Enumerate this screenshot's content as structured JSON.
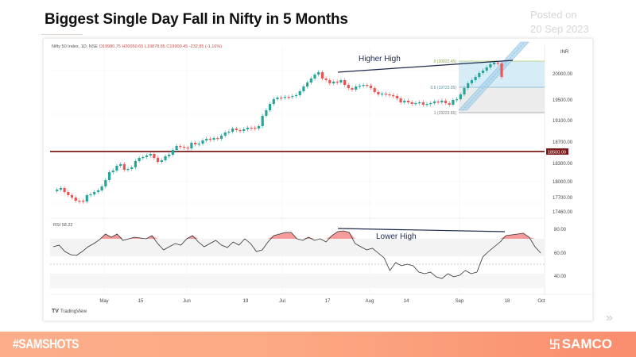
{
  "header": {
    "title": "Biggest Single Day Fall in Nifty in 5 Months",
    "posted_label": "Posted on",
    "posted_date": "20 Sep 2023"
  },
  "chart_header": {
    "symbol": "Nifty 50 Index, 1D, NSE",
    "open": "O19980.75",
    "high": "H20050.65",
    "low": "L19878.85",
    "close": "C19900.45",
    "change": "-232.85 (-1.16%)"
  },
  "annotations": {
    "higher_high": "Higher High",
    "lower_high": "Lower High",
    "fib_0": "0 (20022.45)",
    "fib_05": "0.5 (19723.05)",
    "fib_1": "1 (19223.65)",
    "support_label": "18500.00",
    "rsi_label": "RSI 58.22"
  },
  "price_axis": {
    "currency": "INR",
    "ticks": [
      "20000.00",
      "19500.00",
      "19100.00",
      "18700.00",
      "18500.00",
      "18300.00",
      "18000.00",
      "17700.00",
      "17460.00"
    ]
  },
  "rsi_axis": {
    "ticks": [
      "80.00",
      "60.00",
      "40.00"
    ]
  },
  "time_axis": {
    "ticks": [
      "May",
      "15",
      "Jun",
      "19",
      "Jul",
      "17",
      "Aug",
      "14",
      "Sep",
      "18",
      "Oct"
    ]
  },
  "branding": {
    "tradingview": "TradingView",
    "hashtag": "#SAMSHOTS",
    "brand": "SAMCO",
    "brand_symbol": "卐",
    "next_icon": "»"
  },
  "colors": {
    "up": "#26a69a",
    "down": "#ef5350",
    "support_line": "#7b1a1a",
    "trendline": "#1c2a4a",
    "fib_zone": "#bfe0f0",
    "channel": "#a8d4ee",
    "rsi_fill": "#f48a8a",
    "footer_start": "#fcae8a",
    "footer_end": "#f98d6e"
  },
  "chart_data": {
    "type": "candlestick",
    "title": "Nifty 50 Index, 1D, NSE",
    "x_range": [
      "Apr 2023",
      "Oct 2023"
    ],
    "y_range": [
      17460,
      20200
    ],
    "last_candle": {
      "open": 19980.75,
      "high": 20050.65,
      "low": 19878.85,
      "close": 19900.45,
      "change": -232.85,
      "change_pct": -1.16
    },
    "horizontal_support": 18500,
    "fibonacci": [
      {
        "level": 0,
        "price": 20022.45
      },
      {
        "level": 0.5,
        "price": 19723.05
      },
      {
        "level": 1,
        "price": 19223.65
      }
    ],
    "approx_closes": [
      {
        "date": "Apr end",
        "close": 17750
      },
      {
        "date": "May 1",
        "close": 18050
      },
      {
        "date": "May 15",
        "close": 18400
      },
      {
        "date": "Jun 1",
        "close": 18500
      },
      {
        "date": "Jun 19",
        "close": 18750
      },
      {
        "date": "Jul 3",
        "close": 19350
      },
      {
        "date": "Jul 20",
        "close": 19990
      },
      {
        "date": "Aug 1",
        "close": 19700
      },
      {
        "date": "Aug 14",
        "close": 19450
      },
      {
        "date": "Sep 1",
        "close": 19430
      },
      {
        "date": "Sep 15",
        "close": 20130
      },
      {
        "date": "Sep 20",
        "close": 19900
      }
    ],
    "rsi": {
      "current": 58.22,
      "levels": [
        30,
        50,
        70
      ],
      "approx_values": [
        65,
        58,
        56,
        72,
        70,
        68,
        58,
        70,
        60,
        66,
        55,
        76,
        68,
        80,
        62,
        48,
        55,
        44,
        42,
        46,
        42,
        60,
        77,
        58
      ]
    },
    "annotations": [
      "Higher High",
      "Lower High"
    ],
    "xlabel": "",
    "ylabel": "INR"
  }
}
